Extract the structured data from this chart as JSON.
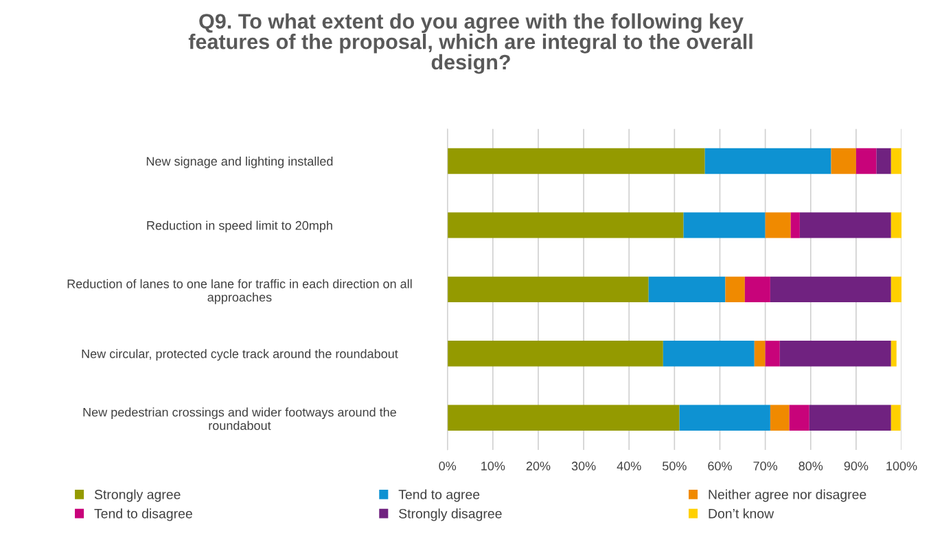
{
  "chart_data": {
    "type": "bar",
    "orientation": "horizontal",
    "stacked": true,
    "title": "Q9. To what extent do you agree with the following key\nfeatures of the proposal, which are integral to the overall\ndesign?",
    "categories": [
      "New signage and lighting installed",
      "Reduction in speed limit to 20mph",
      "Reduction of lanes to one lane for traffic in each direction on all\napproaches",
      "New circular, protected cycle track around the roundabout",
      "New pedestrian crossings and wider footways around the\nroundabout"
    ],
    "series": [
      {
        "name": "Strongly agree",
        "color": "#949a00",
        "values": [
          56.7,
          52.0,
          44.3,
          47.5,
          51.1
        ]
      },
      {
        "name": "Tend to agree",
        "color": "#0e92d2",
        "values": [
          27.8,
          18.0,
          16.9,
          20.1,
          20.0
        ]
      },
      {
        "name": "Neither agree nor disagree",
        "color": "#f08a00",
        "values": [
          5.5,
          5.6,
          4.3,
          2.4,
          4.2
        ]
      },
      {
        "name": "Tend to disagree",
        "color": "#c8037a",
        "values": [
          4.5,
          2.0,
          5.6,
          3.2,
          4.4
        ]
      },
      {
        "name": "Strongly disagree",
        "color": "#702280",
        "values": [
          3.2,
          20.1,
          26.6,
          24.5,
          18.0
        ]
      },
      {
        "name": "Don’t know",
        "color": "#ffd000",
        "values": [
          2.3,
          2.3,
          2.3,
          1.2,
          2.1
        ]
      }
    ],
    "xlim": [
      0,
      100
    ],
    "xticks": [
      {
        "value": 0,
        "label": "0%"
      },
      {
        "value": 10,
        "label": "10%"
      },
      {
        "value": 20,
        "label": "20%"
      },
      {
        "value": 30,
        "label": "30%"
      },
      {
        "value": 40,
        "label": "40%"
      },
      {
        "value": 50,
        "label": "50%"
      },
      {
        "value": 60,
        "label": "60%"
      },
      {
        "value": 70,
        "label": "70%"
      },
      {
        "value": 80,
        "label": "80%"
      },
      {
        "value": 90,
        "label": "90%"
      },
      {
        "value": 100,
        "label": "100%"
      }
    ],
    "grid": "x",
    "legend": "bottom"
  }
}
